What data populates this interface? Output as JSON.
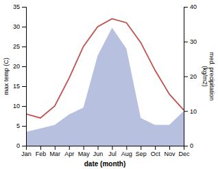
{
  "chart_data": {
    "type": "line",
    "xlabel": "date (month)",
    "ylabel": "max temp (C)",
    "y2label": "med. precipitation\n(kg/m2)",
    "categories": [
      "Jan",
      "Feb",
      "Mar",
      "Apr",
      "May",
      "Jun",
      "Jul",
      "Aug",
      "Sep",
      "Oct",
      "Nov",
      "Dec"
    ],
    "series": [
      {
        "type": "area",
        "axis": "y2",
        "color": "#b8c0e0",
        "values": [
          4,
          5,
          6,
          9,
          11,
          26,
          34,
          28,
          8,
          6,
          6,
          10
        ]
      },
      {
        "type": "line",
        "color": "#c0504d",
        "values": [
          8,
          7,
          10,
          17,
          25,
          30,
          32,
          31,
          26,
          19,
          13,
          9
        ]
      }
    ],
    "ylim": [
      0,
      35
    ],
    "yticks": [
      0,
      5,
      10,
      15,
      20,
      25,
      30,
      35
    ],
    "y2lim": [
      0,
      40
    ],
    "y2ticks": [
      0,
      10,
      20,
      30,
      40
    ],
    "grid": false
  }
}
